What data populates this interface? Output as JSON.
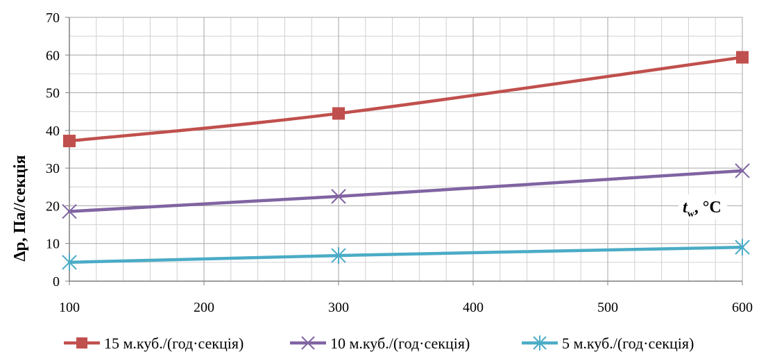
{
  "chart_data": {
    "type": "line",
    "title": "",
    "xlabel_main": "t",
    "xlabel_sub": "w",
    "xlabel_unit": ", °C",
    "ylabel": "Δp, Па//секція",
    "xlim": [
      100,
      600
    ],
    "ylim": [
      0,
      70
    ],
    "x_ticks": [
      100,
      200,
      300,
      400,
      500,
      600
    ],
    "y_ticks": [
      0,
      10,
      20,
      30,
      40,
      50,
      60,
      70
    ],
    "grid": true,
    "legend_position": "bottom",
    "x": [
      100,
      300,
      600
    ],
    "series": [
      {
        "name": "15 м.куб./(год·секція)",
        "values": [
          37.2,
          44.5,
          59.4
        ],
        "color": "#c0504d",
        "marker": "square"
      },
      {
        "name": "10 м.куб./(год·секція)",
        "values": [
          18.5,
          22.5,
          29.3
        ],
        "color": "#8064a2",
        "marker": "x"
      },
      {
        "name": "5 м.куб./(год·секція)",
        "values": [
          5.0,
          6.8,
          9.0
        ],
        "color": "#4bacc6",
        "marker": "star"
      }
    ]
  }
}
